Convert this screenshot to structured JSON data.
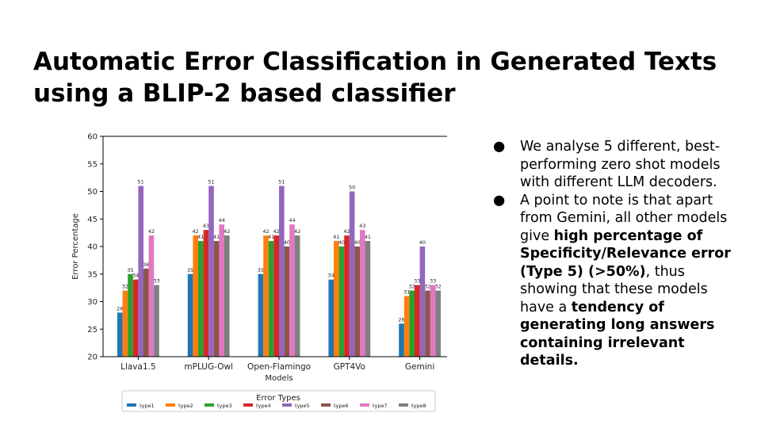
{
  "slide": {
    "title_line1": "Automatic Error Classification in Generated Texts",
    "title_line2": "using a BLIP-2 based classifier"
  },
  "bullets": [
    {
      "marker": "●",
      "parts": [
        {
          "text": "We analyse 5 different, best-performing zero shot models with different LLM decoders.",
          "bold": false
        }
      ]
    },
    {
      "marker": "●",
      "parts": [
        {
          "text": "A point to note is that apart from Gemini, all other models give ",
          "bold": false
        },
        {
          "text": "high percentage of Specificity/Relevance error (Type 5) (>50%)",
          "bold": true
        },
        {
          "text": ", thus showing that these models have a ",
          "bold": false
        },
        {
          "text": "tendency of generating long answers containing irrelevant details.",
          "bold": true
        }
      ]
    }
  ],
  "chart_data": {
    "type": "bar",
    "xlabel": "Models",
    "ylabel": "Error Percentage",
    "ylim": [
      20,
      60
    ],
    "yticks": [
      20,
      25,
      30,
      35,
      40,
      45,
      50,
      55,
      60
    ],
    "grid": false,
    "legend_title": "Error Types",
    "legend_position": "bottom",
    "categories": [
      "Llava1.5",
      "mPLUG-Owl",
      "Open-Flamingo",
      "GPT4Vo",
      "Gemini"
    ],
    "series": [
      {
        "name": "type1",
        "color": "#1f77b4",
        "values": [
          28,
          35,
          35,
          34,
          26
        ]
      },
      {
        "name": "type2",
        "color": "#ff7f0e",
        "values": [
          32,
          42,
          42,
          41,
          31
        ]
      },
      {
        "name": "type3",
        "color": "#2ca02c",
        "values": [
          35,
          41,
          41,
          40,
          32
        ]
      },
      {
        "name": "type4",
        "color": "#d62728",
        "values": [
          34,
          43,
          42,
          42,
          33
        ]
      },
      {
        "name": "type5",
        "color": "#9467bd",
        "values": [
          51,
          51,
          51,
          50,
          40
        ]
      },
      {
        "name": "type6",
        "color": "#8c564b",
        "values": [
          36,
          41,
          40,
          40,
          32
        ]
      },
      {
        "name": "type7",
        "color": "#e377c2",
        "values": [
          42,
          44,
          44,
          43,
          33
        ]
      },
      {
        "name": "type8",
        "color": "#7f7f7f",
        "values": [
          33,
          42,
          42,
          41,
          32
        ]
      }
    ]
  }
}
